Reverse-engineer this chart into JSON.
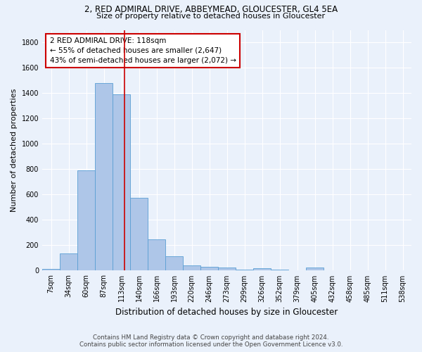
{
  "title1": "2, RED ADMIRAL DRIVE, ABBEYMEAD, GLOUCESTER, GL4 5EA",
  "title2": "Size of property relative to detached houses in Gloucester",
  "xlabel": "Distribution of detached houses by size in Gloucester",
  "ylabel": "Number of detached properties",
  "footer1": "Contains HM Land Registry data © Crown copyright and database right 2024.",
  "footer2": "Contains public sector information licensed under the Open Government Licence v3.0.",
  "bin_labels": [
    "7sqm",
    "34sqm",
    "60sqm",
    "87sqm",
    "113sqm",
    "140sqm",
    "166sqm",
    "193sqm",
    "220sqm",
    "246sqm",
    "273sqm",
    "299sqm",
    "326sqm",
    "352sqm",
    "379sqm",
    "405sqm",
    "432sqm",
    "458sqm",
    "485sqm",
    "511sqm",
    "538sqm"
  ],
  "bar_values": [
    15,
    135,
    790,
    1480,
    1390,
    575,
    248,
    113,
    42,
    28,
    22,
    10,
    17,
    10,
    0,
    22,
    0,
    0,
    0,
    0,
    0
  ],
  "bar_color": "#AEC6E8",
  "bar_edgecolor": "#5A9FD4",
  "bg_color": "#EAF1FB",
  "grid_color": "#FFFFFF",
  "annotation_line1": "2 RED ADMIRAL DRIVE: 118sqm",
  "annotation_line2": "← 55% of detached houses are smaller (2,647)",
  "annotation_line3": "43% of semi-detached houses are larger (2,072) →",
  "annotation_box_color": "#FFFFFF",
  "annotation_box_edgecolor": "#CC0000",
  "redline_color": "#CC0000",
  "ylim": [
    0,
    1900
  ],
  "yticks": [
    0,
    200,
    400,
    600,
    800,
    1000,
    1200,
    1400,
    1600,
    1800
  ],
  "title1_fontsize": 8.5,
  "title2_fontsize": 8.0,
  "ylabel_fontsize": 8.0,
  "xlabel_fontsize": 8.5,
  "tick_fontsize": 7.0,
  "footer_fontsize": 6.2,
  "ann_fontsize": 7.5
}
